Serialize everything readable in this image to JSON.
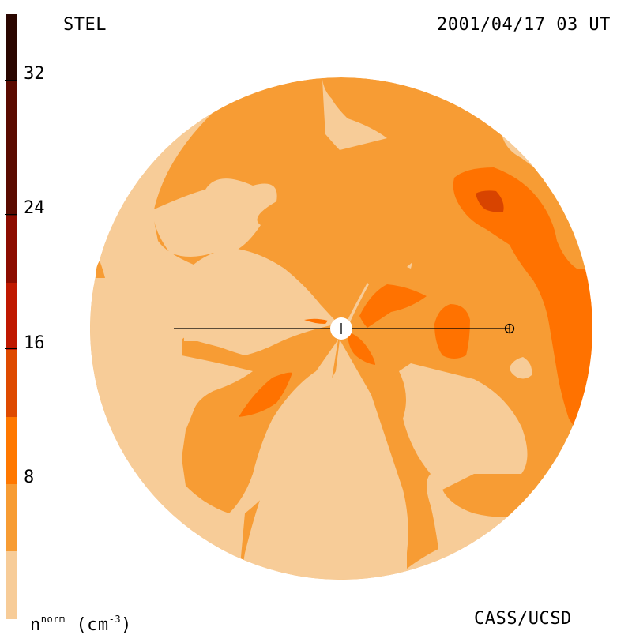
{
  "header": {
    "left_label": "STEL",
    "right_label": "2001/04/17 03 UT"
  },
  "footer": {
    "unit_main": "n",
    "unit_sup": "norm",
    "unit_paren": "(cm",
    "unit_exp": "-3",
    "unit_close": ")",
    "credit": "CASS/UCSD"
  },
  "colorbar": {
    "ticks": [
      "32",
      "24",
      "16",
      "8"
    ],
    "colors_top_to_bottom": [
      "#2a0600",
      "#5a0a00",
      "#8c0c00",
      "#bf1800",
      "#de4a00",
      "#ff7800",
      "#f79c34",
      "#f7cc98"
    ]
  },
  "map": {
    "colors": {
      "background": "#f79c34",
      "light": "#f7cc98",
      "medium": "#ff7200",
      "dark": "#d84400",
      "line": "#000000",
      "sun": "#ffffff"
    },
    "markers": [
      "sun-marker",
      "earth-marker"
    ]
  }
}
